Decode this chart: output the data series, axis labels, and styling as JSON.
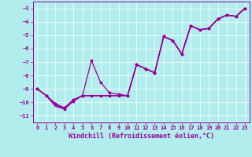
{
  "bg_color": "#b2eded",
  "line_color": "#990099",
  "xlim_min": -0.5,
  "xlim_max": 23.5,
  "ylim_min": -11.5,
  "ylim_max": -2.5,
  "yticks": [
    -11,
    -10,
    -9,
    -8,
    -7,
    -6,
    -5,
    -4,
    -3
  ],
  "xticks": [
    0,
    1,
    2,
    3,
    4,
    5,
    6,
    7,
    8,
    9,
    10,
    11,
    12,
    13,
    14,
    15,
    16,
    17,
    18,
    19,
    20,
    21,
    22,
    23
  ],
  "xlabel": "Windchill (Refroidissement éolien,°C)",
  "grid_color": "#ffffff",
  "font_color": "#990099",
  "tick_fontsize": 5.0,
  "xlabel_fontsize": 6.0,
  "line_width": 0.9,
  "marker_size": 2.5,
  "series1_x": [
    0,
    1,
    2,
    3,
    4,
    5,
    6,
    7,
    8,
    9,
    10,
    11,
    12,
    13,
    14,
    15,
    16,
    17,
    18,
    19,
    20,
    21,
    22,
    23
  ],
  "series1_y": [
    -9.0,
    -9.5,
    -10.1,
    -10.4,
    -9.8,
    -9.5,
    -6.9,
    -8.5,
    -9.3,
    -9.4,
    -9.5,
    -7.2,
    -7.5,
    -7.8,
    -5.1,
    -5.4,
    -6.4,
    -4.3,
    -4.6,
    -4.5,
    -3.8,
    -3.5,
    -3.6,
    -3.0
  ],
  "series2_x": [
    0,
    1,
    2,
    3,
    4,
    5,
    6,
    7,
    8,
    9,
    10,
    11,
    12,
    13,
    14,
    15,
    16,
    17,
    18,
    19,
    20,
    21,
    22,
    23
  ],
  "series2_y": [
    -9.0,
    -9.5,
    -10.1,
    -10.5,
    -9.9,
    -9.5,
    -9.5,
    -9.5,
    -9.5,
    -9.5,
    -9.5,
    -7.2,
    -7.5,
    -7.8,
    -5.1,
    -5.4,
    -6.4,
    -4.3,
    -4.6,
    -4.5,
    -3.8,
    -3.5,
    -3.6,
    -3.0
  ],
  "series3_x": [
    0,
    1,
    2,
    3,
    4,
    5,
    6,
    7,
    8,
    9,
    10,
    11,
    12,
    13,
    14,
    15,
    16,
    17,
    18,
    19,
    20,
    21,
    22,
    23
  ],
  "series3_y": [
    -9.0,
    -9.5,
    -10.2,
    -10.5,
    -9.9,
    -9.5,
    -9.5,
    -9.5,
    -9.5,
    -9.5,
    -9.5,
    -7.2,
    -7.5,
    -7.8,
    -5.1,
    -5.4,
    -6.4,
    -4.3,
    -4.6,
    -4.5,
    -3.8,
    -3.5,
    -3.6,
    -3.0
  ],
  "series4_x": [
    0,
    1,
    2,
    3,
    4,
    5,
    6,
    7,
    8,
    9,
    10,
    11,
    12,
    13,
    14,
    15,
    16,
    17,
    18,
    19,
    20,
    21,
    22,
    23
  ],
  "series4_y": [
    -9.0,
    -9.5,
    -10.3,
    -10.5,
    -9.9,
    -9.5,
    -9.5,
    -9.5,
    -9.5,
    -9.5,
    -9.5,
    -7.2,
    -7.5,
    -7.8,
    -5.1,
    -5.4,
    -6.4,
    -4.3,
    -4.6,
    -4.5,
    -3.8,
    -3.5,
    -3.6,
    -3.0
  ]
}
